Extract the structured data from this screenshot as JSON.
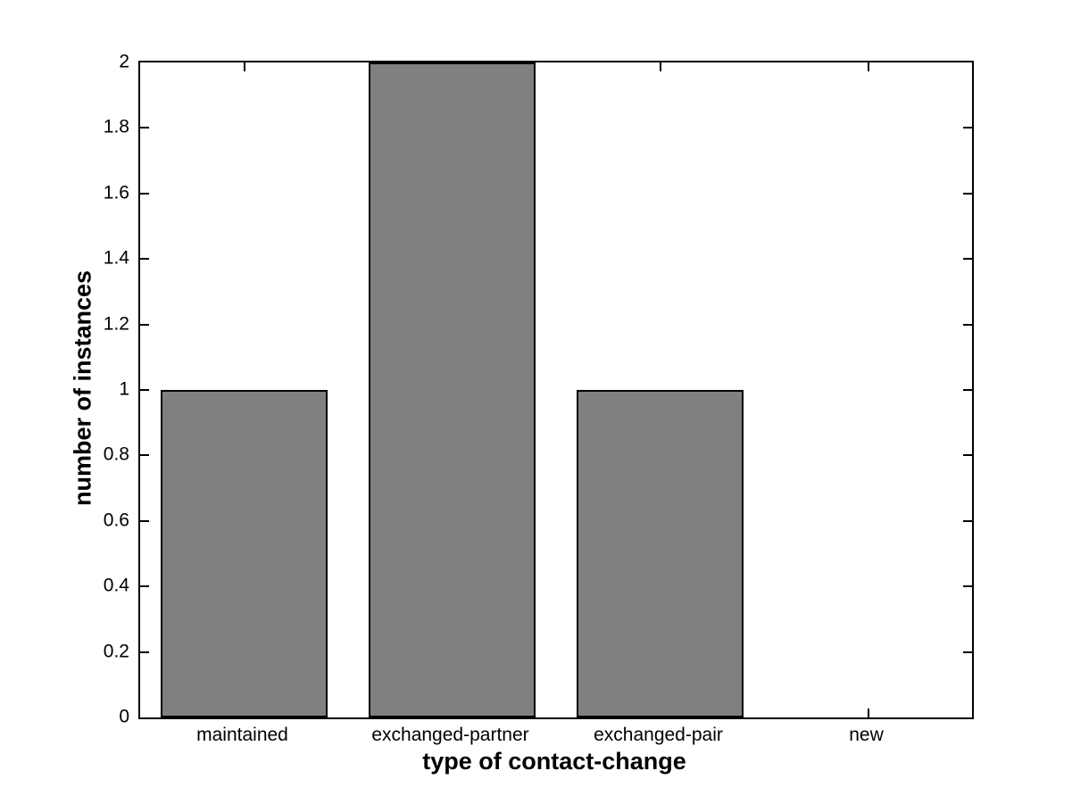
{
  "chart_data": {
    "type": "bar",
    "title": "",
    "xlabel": "type of contact-change",
    "ylabel": "number of instances",
    "categories": [
      "maintained",
      "exchanged-partner",
      "exchanged-pair",
      "new"
    ],
    "values": [
      1,
      2,
      1,
      0
    ],
    "ylim": [
      0,
      2
    ],
    "yticks": [
      0,
      0.2,
      0.4,
      0.6,
      0.8,
      1,
      1.2,
      1.4,
      1.6,
      1.8,
      2
    ],
    "ytick_labels": [
      "0",
      "0.2",
      "0.4",
      "0.6",
      "0.8",
      "1",
      "1.2",
      "1.4",
      "1.6",
      "1.8",
      "2"
    ],
    "grid": false,
    "legend": null,
    "bar_color": "#808080",
    "bar_edge_color": "#000000",
    "axis_color": "#000000",
    "background_color": "#ffffff"
  }
}
